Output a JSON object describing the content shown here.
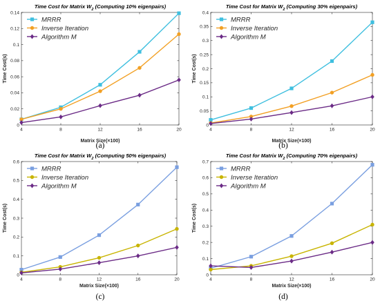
{
  "chart_data": [
    {
      "type": "line",
      "caption": "(a)",
      "title": "Time Cost for Matrix W",
      "title_sub": "2",
      "title_suffix": " (Computing 10% eigenpairs)",
      "xlabel": "Matrix Size(×100)",
      "ylabel": "Time Cost(s)",
      "x": [
        4,
        8,
        12,
        16,
        20
      ],
      "xlim": [
        4,
        20
      ],
      "ylim": [
        0,
        0.14
      ],
      "yticks": [
        0,
        0.02,
        0.04,
        0.06,
        0.08,
        0.1,
        0.12,
        0.14
      ],
      "ytick_labels": [
        "0",
        "0.02",
        "0.04",
        "0.06",
        "0.08",
        "0.1",
        "0.12",
        "0.14"
      ],
      "grid": false,
      "legend": "top-left",
      "series": [
        {
          "name": "MRRR",
          "color": "#3fbfdf",
          "marker": "square",
          "values": [
            0.007,
            0.022,
            0.05,
            0.091,
            0.139
          ]
        },
        {
          "name": "Inverse Iteration",
          "color": "#f2a024",
          "marker": "circle",
          "values": [
            0.007,
            0.02,
            0.042,
            0.071,
            0.113
          ]
        },
        {
          "name": "Algorithm M",
          "color": "#6b2b86",
          "marker": "diamond",
          "values": [
            0.003,
            0.01,
            0.024,
            0.037,
            0.056
          ]
        }
      ]
    },
    {
      "type": "line",
      "caption": "(b)",
      "title": "Time Cost for Matrix W",
      "title_sub": "2",
      "title_suffix": " (Computing 30% eigenpairs)",
      "xlabel": "Matrix Size(×100)",
      "ylabel": "Time Cost(s)",
      "x": [
        4,
        8,
        12,
        16,
        20
      ],
      "xlim": [
        4,
        20
      ],
      "ylim": [
        0,
        0.4
      ],
      "yticks": [
        0,
        0.05,
        0.1,
        0.15,
        0.2,
        0.25,
        0.3,
        0.35,
        0.4
      ],
      "ytick_labels": [
        "0",
        "0.05",
        "0.1",
        "0.15",
        "0.2",
        "0.25",
        "0.3",
        "0.35",
        "0.4"
      ],
      "grid": false,
      "legend": "top-left",
      "series": [
        {
          "name": "MRRR",
          "color": "#3fbfdf",
          "marker": "square",
          "values": [
            0.018,
            0.06,
            0.13,
            0.227,
            0.365
          ]
        },
        {
          "name": "Inverse Iteration",
          "color": "#f2a024",
          "marker": "circle",
          "values": [
            0.007,
            0.03,
            0.067,
            0.115,
            0.178
          ]
        },
        {
          "name": "Algorithm M",
          "color": "#6b2b86",
          "marker": "diamond",
          "values": [
            0.005,
            0.021,
            0.044,
            0.068,
            0.1
          ]
        }
      ]
    },
    {
      "type": "line",
      "caption": "(c)",
      "title": "Time Cost for Matrix W",
      "title_sub": "2",
      "title_suffix": " (Computing 50% eigenpairs)",
      "xlabel": "Matrix Size(×100)",
      "ylabel": "Time Cost(s)",
      "x": [
        4,
        8,
        12,
        16,
        20
      ],
      "xlim": [
        4,
        20
      ],
      "ylim": [
        0,
        0.6
      ],
      "yticks": [
        0,
        0.1,
        0.2,
        0.3,
        0.4,
        0.5,
        0.6
      ],
      "ytick_labels": [
        "0",
        "0.1",
        "0.2",
        "0.3",
        "0.4",
        "0.5",
        "0.6"
      ],
      "grid": false,
      "legend": "top-left",
      "series": [
        {
          "name": "MRRR",
          "color": "#7a9fe0",
          "marker": "square",
          "values": [
            0.027,
            0.094,
            0.21,
            0.372,
            0.57
          ]
        },
        {
          "name": "Inverse Iteration",
          "color": "#c8b400",
          "marker": "circle",
          "values": [
            0.013,
            0.042,
            0.09,
            0.155,
            0.243
          ]
        },
        {
          "name": "Algorithm M",
          "color": "#6b2b86",
          "marker": "diamond",
          "values": [
            0.01,
            0.03,
            0.064,
            0.1,
            0.145
          ]
        }
      ]
    },
    {
      "type": "line",
      "caption": "(d)",
      "title": "Time Cost for Matrix W",
      "title_sub": "2",
      "title_suffix": " (Computing 70% eigenpairs)",
      "xlabel": "Matrix Size(×100)",
      "ylabel": "Time Cost(s)",
      "x": [
        4,
        8,
        12,
        16,
        20
      ],
      "xlim": [
        4,
        20
      ],
      "ylim": [
        0,
        0.7
      ],
      "yticks": [
        0,
        0.1,
        0.2,
        0.3,
        0.4,
        0.5,
        0.6,
        0.7
      ],
      "ytick_labels": [
        "0",
        "0.1",
        "0.2",
        "0.3",
        "0.4",
        "0.5",
        "0.6",
        "0.7"
      ],
      "grid": false,
      "legend": "top-left",
      "series": [
        {
          "name": "MRRR",
          "color": "#7a9fe0",
          "marker": "square",
          "values": [
            0.04,
            0.112,
            0.24,
            0.44,
            0.68
          ]
        },
        {
          "name": "Inverse Iteration",
          "color": "#c8b400",
          "marker": "circle",
          "values": [
            0.032,
            0.055,
            0.115,
            0.195,
            0.31
          ]
        },
        {
          "name": "Algorithm M",
          "color": "#6b2b86",
          "marker": "diamond",
          "values": [
            0.055,
            0.045,
            0.085,
            0.14,
            0.2
          ]
        }
      ]
    }
  ]
}
